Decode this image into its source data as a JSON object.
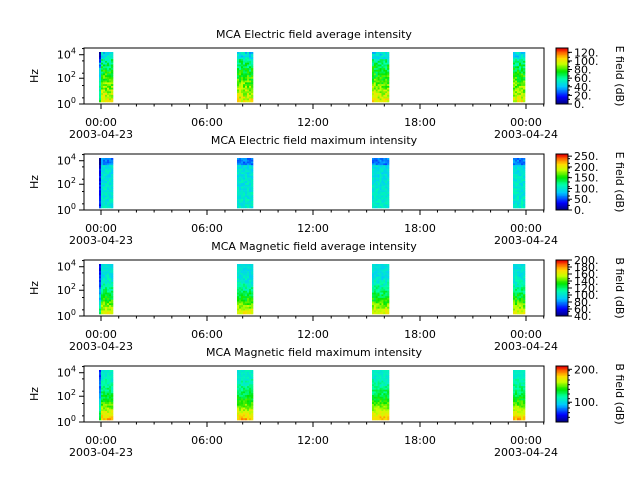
{
  "chart_data": [
    {
      "type": "heatmap",
      "title": "MCA  Electric field average intensity",
      "ylabel": "Hz",
      "colorbar_label": "E field (dB)",
      "colorbar_ticks": [
        "0.",
        "20.",
        "40.",
        "60.",
        "80.",
        "100.",
        "120."
      ],
      "colorbar_range": [
        0,
        130
      ],
      "y_log": true,
      "yticks": [
        {
          "base": "10",
          "exp": "0"
        },
        {
          "base": "10",
          "exp": "2"
        },
        {
          "base": "10",
          "exp": "4"
        }
      ],
      "ylim": [
        1,
        50000
      ],
      "xlim_hours": [
        -4,
        44
      ],
      "xticks": [
        {
          "label": "00:00",
          "date": "2003-04-23"
        },
        {
          "label": "06:00",
          "date": ""
        },
        {
          "label": "12:00",
          "date": ""
        },
        {
          "label": "18:00",
          "date": ""
        },
        {
          "label": "00:00",
          "date": "2003-04-24"
        }
      ],
      "segments_hours": [
        [
          0.0,
          1.2
        ],
        [
          15.2,
          16.8
        ],
        [
          30.5,
          32.5
        ],
        [
          45.8,
          47.0
        ]
      ],
      "intensity_profile": "avg"
    },
    {
      "type": "heatmap",
      "title": "MCA  Electric field maximum intensity",
      "ylabel": "Hz",
      "colorbar_label": "E field (dB)",
      "colorbar_ticks": [
        "0.",
        "50.",
        "100.",
        "150.",
        "200.",
        "250."
      ],
      "colorbar_range": [
        0,
        260
      ],
      "y_log": true,
      "yticks": [
        {
          "base": "10",
          "exp": "0"
        },
        {
          "base": "10",
          "exp": "2"
        },
        {
          "base": "10",
          "exp": "4"
        }
      ],
      "ylim": [
        1,
        50000
      ],
      "xticks": [
        {
          "label": "00:00",
          "date": "2003-04-23"
        },
        {
          "label": "06:00",
          "date": ""
        },
        {
          "label": "12:00",
          "date": ""
        },
        {
          "label": "18:00",
          "date": ""
        },
        {
          "label": "00:00",
          "date": "2003-04-24"
        }
      ],
      "intensity_profile": "max"
    },
    {
      "type": "heatmap",
      "title": "MCA  Magnetic field average intensity",
      "ylabel": "Hz",
      "colorbar_label": "B field (dB)",
      "colorbar_ticks": [
        "40.",
        "60.",
        "80.",
        "100.",
        "120.",
        "140.",
        "160.",
        "180.",
        "200."
      ],
      "colorbar_range": [
        40,
        200
      ],
      "y_log": true,
      "yticks": [
        {
          "base": "10",
          "exp": "0"
        },
        {
          "base": "10",
          "exp": "2"
        },
        {
          "base": "10",
          "exp": "4"
        }
      ],
      "ylim": [
        1,
        50000
      ],
      "xticks": [
        {
          "label": "00:00",
          "date": "2003-04-23"
        },
        {
          "label": "06:00",
          "date": ""
        },
        {
          "label": "12:00",
          "date": ""
        },
        {
          "label": "18:00",
          "date": ""
        },
        {
          "label": "00:00",
          "date": "2003-04-24"
        }
      ],
      "intensity_profile": "mag_avg"
    },
    {
      "type": "heatmap",
      "title": "MCA  Magnetic field maximum intensity",
      "ylabel": "Hz",
      "colorbar_label": "B field (dB)",
      "colorbar_ticks": [
        "100.",
        "200."
      ],
      "colorbar_range": [
        40,
        210
      ],
      "y_log": true,
      "yticks": [
        {
          "base": "10",
          "exp": "0"
        },
        {
          "base": "10",
          "exp": "2"
        },
        {
          "base": "10",
          "exp": "4"
        }
      ],
      "ylim": [
        1,
        50000
      ],
      "xticks": [
        {
          "label": "00:00",
          "date": "2003-04-23"
        },
        {
          "label": "06:00",
          "date": ""
        },
        {
          "label": "12:00",
          "date": ""
        },
        {
          "label": "18:00",
          "date": ""
        },
        {
          "label": "00:00",
          "date": "2003-04-24"
        }
      ],
      "intensity_profile": "mag_max"
    }
  ]
}
